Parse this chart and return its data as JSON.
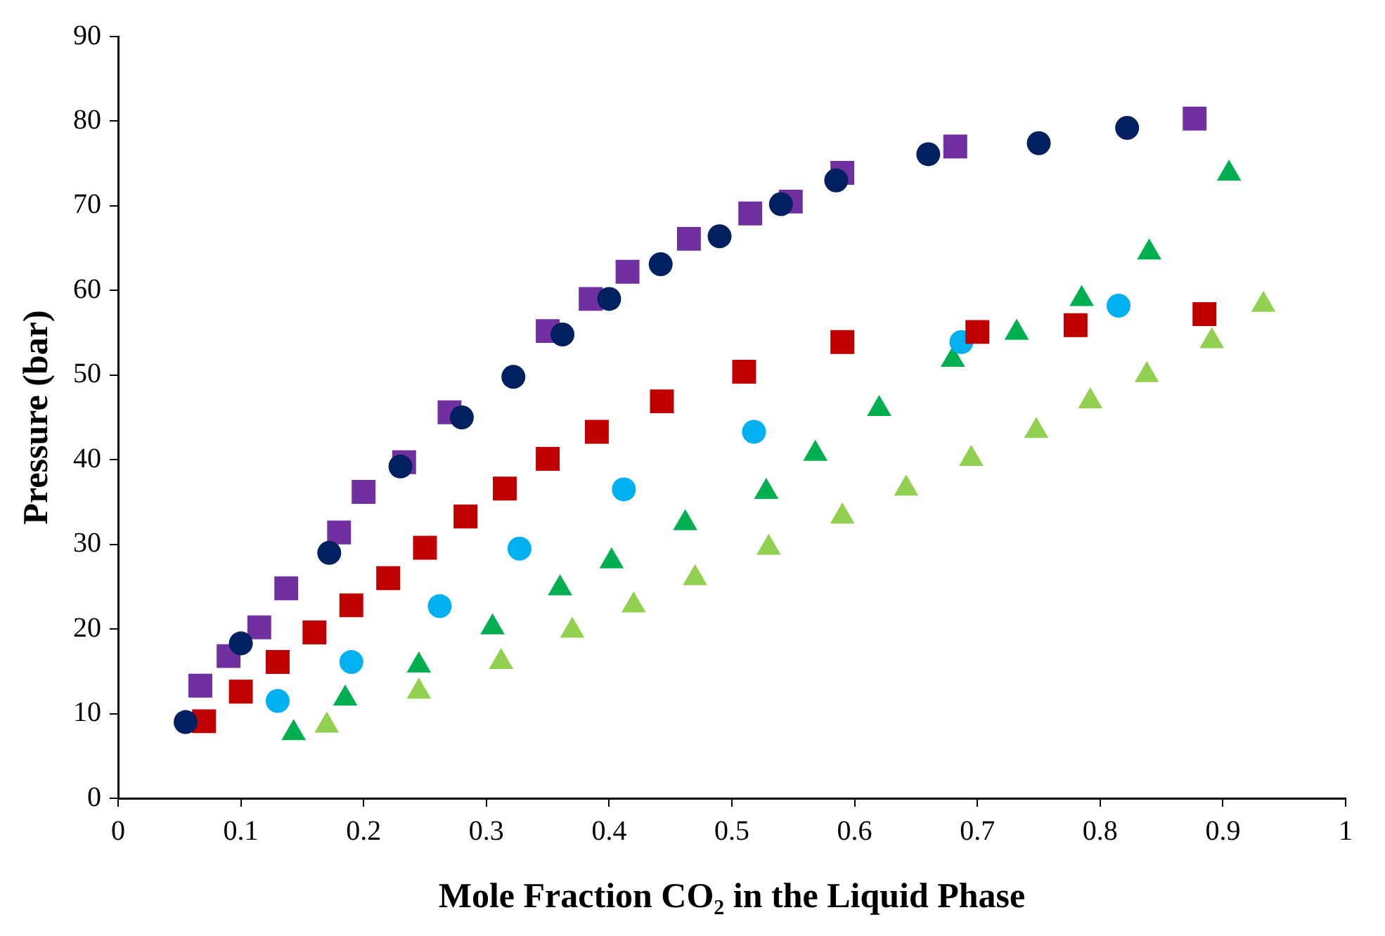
{
  "chart_data": {
    "type": "scatter",
    "xlabel": "Mole Fraction CO₂ in the Liquid Phase",
    "ylabel": "Pressure (bar)",
    "xlim": [
      0,
      1
    ],
    "ylim": [
      0,
      90
    ],
    "xticks": [
      0,
      0.1,
      0.2,
      0.3,
      0.4,
      0.5,
      0.6,
      0.7,
      0.8,
      0.9,
      1
    ],
    "yticks": [
      0,
      10,
      20,
      30,
      40,
      50,
      60,
      70,
      80,
      90
    ],
    "grid": false,
    "legend": false,
    "series": [
      {
        "color": "#002060",
        "marker": "circle",
        "x": [
          0.055,
          0.1,
          0.172,
          0.23,
          0.28,
          0.322,
          0.362,
          0.4,
          0.442,
          0.49,
          0.54,
          0.585,
          0.66,
          0.75,
          0.822
        ],
        "values": [
          9,
          18.3,
          29,
          39.2,
          45,
          49.8,
          54.8,
          59,
          63.1,
          66.4,
          70.2,
          73,
          76.1,
          77.4,
          79.2
        ]
      },
      {
        "color": "#7030a0",
        "marker": "square",
        "x": [
          0.067,
          0.09,
          0.115,
          0.137,
          0.18,
          0.2,
          0.233,
          0.27,
          0.35,
          0.385,
          0.415,
          0.465,
          0.515,
          0.548,
          0.59,
          0.682,
          0.877
        ],
        "values": [
          13.3,
          16.8,
          20.2,
          24.8,
          31.4,
          36.2,
          39.7,
          45.6,
          55.2,
          59,
          62.2,
          66.1,
          69.1,
          70.5,
          73.9,
          77,
          80.3
        ]
      },
      {
        "color": "#c00000",
        "marker": "square",
        "x": [
          0.07,
          0.1,
          0.13,
          0.16,
          0.19,
          0.22,
          0.25,
          0.283,
          0.315,
          0.35,
          0.39,
          0.443,
          0.51,
          0.59,
          0.7,
          0.78,
          0.885
        ],
        "values": [
          9.1,
          12.6,
          16.1,
          19.6,
          22.8,
          26,
          29.6,
          33.3,
          36.6,
          40.1,
          43.3,
          46.9,
          50.4,
          53.9,
          55.1,
          55.9,
          57.2
        ]
      },
      {
        "color": "#00b0f0",
        "marker": "circle",
        "x": [
          0.13,
          0.19,
          0.262,
          0.327,
          0.412,
          0.518,
          0.687,
          0.815
        ],
        "values": [
          11.5,
          16.1,
          22.7,
          29.5,
          36.5,
          43.3,
          53.9,
          58.2
        ]
      },
      {
        "color": "#00b050",
        "marker": "triangle",
        "x": [
          0.143,
          0.185,
          0.245,
          0.305,
          0.36,
          0.402,
          0.462,
          0.528,
          0.568,
          0.62,
          0.68,
          0.732,
          0.785,
          0.84,
          0.905
        ],
        "values": [
          7.7,
          11.8,
          15.7,
          20.2,
          24.8,
          28,
          32.5,
          36.2,
          40.7,
          46,
          51.8,
          55,
          59,
          64.5,
          73.8
        ]
      },
      {
        "color": "#92d050",
        "marker": "triangle",
        "x": [
          0.17,
          0.245,
          0.312,
          0.37,
          0.42,
          0.47,
          0.53,
          0.59,
          0.642,
          0.695,
          0.748,
          0.792,
          0.838,
          0.891,
          0.933
        ],
        "values": [
          8.6,
          12.6,
          16.1,
          19.8,
          22.8,
          26,
          29.6,
          33.3,
          36.6,
          40.1,
          43.4,
          46.9,
          50,
          54,
          58.3
        ]
      }
    ]
  }
}
